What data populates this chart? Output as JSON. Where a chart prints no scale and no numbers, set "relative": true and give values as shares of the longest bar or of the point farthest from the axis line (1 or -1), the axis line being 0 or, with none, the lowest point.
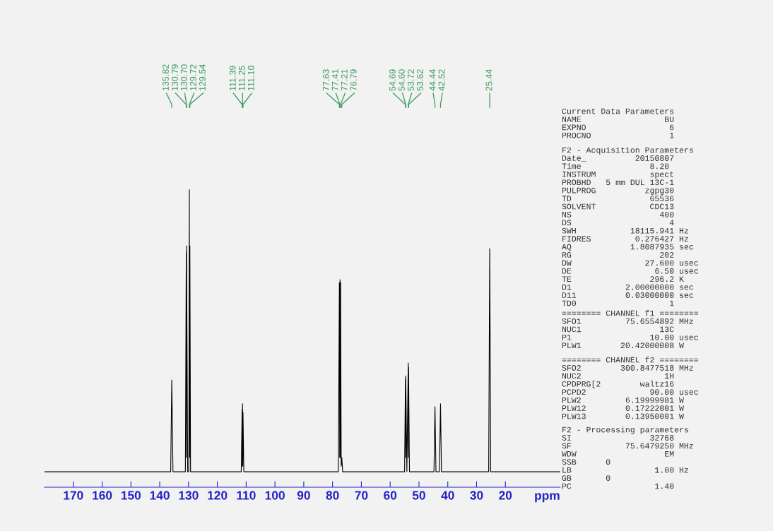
{
  "chart_data": {
    "type": "line",
    "relative": true,
    "xlabel": "ppm",
    "xlim": [
      180,
      1
    ],
    "xticks": [
      170,
      160,
      150,
      140,
      130,
      120,
      110,
      100,
      90,
      80,
      70,
      60,
      50,
      40,
      30,
      20
    ],
    "grid": false,
    "legend": false,
    "marker": "none",
    "line_style": "solid",
    "series": [
      {
        "color": "#000000",
        "x": [
          180,
          160,
          140,
          136.2,
          135.82,
          135.4,
          131.1,
          130.79,
          130.74,
          130.7,
          130.3,
          129.9,
          129.72,
          129.63,
          129.54,
          129.3,
          120,
          111.7,
          111.39,
          111.32,
          111.25,
          111.17,
          111.1,
          110.8,
          90,
          78.0,
          77.63,
          77.52,
          77.41,
          77.31,
          77.21,
          77.0,
          76.79,
          76.5,
          60,
          55.0,
          54.69,
          54.64,
          54.6,
          54.2,
          53.72,
          53.67,
          53.62,
          53.3,
          48,
          44.8,
          44.44,
          44.1,
          42.9,
          42.52,
          42.2,
          35,
          25.8,
          25.44,
          25.1,
          10,
          1
        ],
        "values": [
          0.052,
          0.052,
          0.052,
          0.052,
          0.36,
          0.052,
          0.052,
          0.791,
          0.1,
          0.81,
          0.052,
          0.052,
          1.0,
          0.1,
          0.81,
          0.052,
          0.052,
          0.052,
          0.261,
          0.071,
          0.28,
          0.071,
          0.251,
          0.052,
          0.052,
          0.052,
          0.687,
          0.1,
          0.697,
          0.1,
          0.687,
          0.071,
          0.1,
          0.052,
          0.052,
          0.052,
          0.365,
          0.1,
          0.374,
          0.052,
          0.417,
          0.1,
          0.403,
          0.052,
          0.052,
          0.052,
          0.27,
          0.052,
          0.052,
          0.28,
          0.052,
          0.052,
          0.052,
          0.801,
          0.052,
          0.052,
          0.052
        ]
      }
    ],
    "annotations": [
      "135.82",
      "130.79",
      "130.70",
      "129.72",
      "129.54",
      "111.39",
      "111.25",
      "111.10",
      "77.63",
      "77.41",
      "77.21",
      "76.79",
      "54.69",
      "54.60",
      "53.72",
      "53.62",
      "44.44",
      "42.52",
      "25.44",
      "Current Data Parameters\nNAME                 BU\nEXPNO                 6\nPROCNO                1",
      "F2 - Acquisition Parameters\nDate_          20150807\nTime              8.20\nINSTRUM           spect\nPROBHD   5 mm DUL 13C-1\nPULPROG          zgpg30\nTD                65536\nSOLVENT           CDC13\nNS                  400\nDS                    4\nSWH           18115.941 Hz\nFIDRES         0.276427 Hz\nAQ            1.8087935 sec\nRG                  202\nDW               27.600 usec\nDE                 6.50 usec\nTE                296.2 K\nD1           2.00000000 sec\nD11          0.03000000 sec\nTD0                   1",
      "======== CHANNEL f1 ========\nSFO1         75.6554892 MHz\nNUC1                13C\nP1                10.00 usec\nPLW1        20.42000008 W",
      "======== CHANNEL f2 ========\nSFO2        300.8477518 MHz\nNUC2                 1H\nCPDPRG[2        waltz16\nPCPD2             90.00 usec\nPLW2         6.19999981 W\nPLW12        0.17222001 W\nPLW13        0.13950001 W",
      "F2 - Processing parameters\nSI                32768\nSF           75.6479250 MHz\nWDW                  EM\nSSB      0\nLB                 1.00 Hz\nGB       0\nPC                 1.40"
    ]
  }
}
